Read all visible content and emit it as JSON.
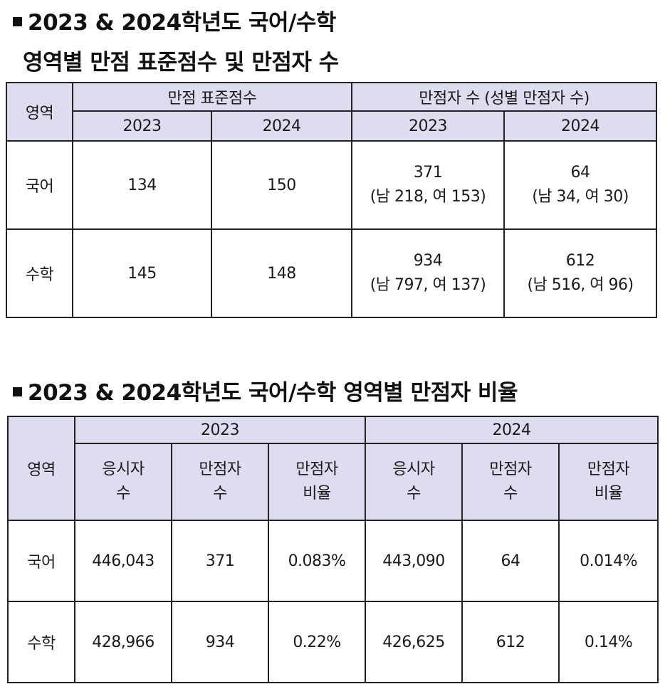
{
  "section1": {
    "title_line1": "2023 & 2024학년도 국어/수학",
    "title_line2": "영역별 만점 표준점수 및 만점자 수",
    "header": {
      "area": "영역",
      "std_score": "만점 표준점수",
      "perfect_count": "만점자 수 (성별 만점자 수)",
      "years": [
        "2023",
        "2024",
        "2023",
        "2024"
      ]
    },
    "rows": [
      {
        "area": "국어",
        "std_2023": "134",
        "std_2024": "150",
        "count_2023": "371",
        "gender_2023": "(남 218, 여 153)",
        "count_2024": "64",
        "gender_2024": "(남 34, 여 30)"
      },
      {
        "area": "수학",
        "std_2023": "145",
        "std_2024": "148",
        "count_2023": "934",
        "gender_2023": "(남 797, 여 137)",
        "count_2024": "612",
        "gender_2024": "(남 516, 여 96)"
      }
    ]
  },
  "section2": {
    "title": "2023 & 2024학년도 국어/수학 영역별 만점자 비율",
    "header": {
      "area": "영역",
      "year_2023": "2023",
      "year_2024": "2024",
      "examinees_l1": "응시자",
      "examinees_l2": "수",
      "perfect_l1": "만점자",
      "perfect_l2": "수",
      "ratio_l1": "만점자",
      "ratio_l2": "비율"
    },
    "rows": [
      {
        "area": "국어",
        "examinees_2023": "446,043",
        "perfect_2023": "371",
        "ratio_2023": "0.083%",
        "examinees_2024": "443,090",
        "perfect_2024": "64",
        "ratio_2024": "0.014%"
      },
      {
        "area": "수학",
        "examinees_2023": "428,966",
        "perfect_2023": "934",
        "ratio_2023": "0.22%",
        "examinees_2024": "426,625",
        "perfect_2024": "612",
        "ratio_2024": "0.14%"
      }
    ]
  }
}
